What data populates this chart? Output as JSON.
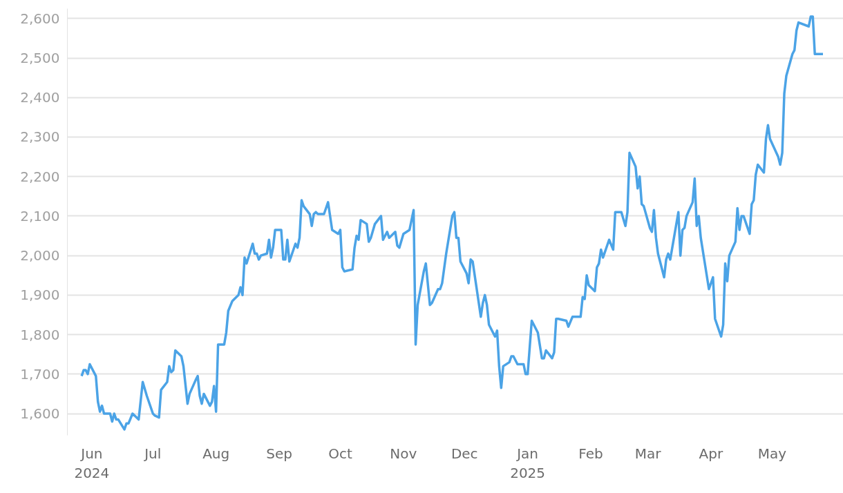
{
  "chart_data": {
    "type": "line",
    "x": [
      "2024-05-27",
      "2024-05-28",
      "2024-05-29",
      "2024-05-30",
      "2024-05-31",
      "2024-06-03",
      "2024-06-04",
      "2024-06-05",
      "2024-06-06",
      "2024-06-07",
      "2024-06-10",
      "2024-06-11",
      "2024-06-12",
      "2024-06-13",
      "2024-06-14",
      "2024-06-17",
      "2024-06-18",
      "2024-06-19",
      "2024-06-21",
      "2024-06-24",
      "2024-06-26",
      "2024-06-28",
      "2024-07-01",
      "2024-07-02",
      "2024-07-04",
      "2024-07-05",
      "2024-07-08",
      "2024-07-09",
      "2024-07-10",
      "2024-07-11",
      "2024-07-12",
      "2024-07-15",
      "2024-07-16",
      "2024-07-18",
      "2024-07-19",
      "2024-07-22",
      "2024-07-23",
      "2024-07-24",
      "2024-07-25",
      "2024-07-26",
      "2024-07-29",
      "2024-07-30",
      "2024-07-31",
      "2024-08-01",
      "2024-08-02",
      "2024-08-05",
      "2024-08-06",
      "2024-08-07",
      "2024-08-09",
      "2024-08-12",
      "2024-08-13",
      "2024-08-14",
      "2024-08-15",
      "2024-08-16",
      "2024-08-19",
      "2024-08-20",
      "2024-08-21",
      "2024-08-22",
      "2024-08-23",
      "2024-08-26",
      "2024-08-27",
      "2024-08-28",
      "2024-08-29",
      "2024-08-30",
      "2024-09-02",
      "2024-09-03",
      "2024-09-04",
      "2024-09-05",
      "2024-09-06",
      "2024-09-09",
      "2024-09-10",
      "2024-09-11",
      "2024-09-12",
      "2024-09-13",
      "2024-09-16",
      "2024-09-17",
      "2024-09-18",
      "2024-09-19",
      "2024-09-20",
      "2024-09-23",
      "2024-09-25",
      "2024-09-27",
      "2024-09-30",
      "2024-10-01",
      "2024-10-02",
      "2024-10-03",
      "2024-10-07",
      "2024-10-08",
      "2024-10-09",
      "2024-10-10",
      "2024-10-11",
      "2024-10-14",
      "2024-10-15",
      "2024-10-16",
      "2024-10-18",
      "2024-10-21",
      "2024-10-22",
      "2024-10-24",
      "2024-10-25",
      "2024-10-28",
      "2024-10-29",
      "2024-10-30",
      "2024-11-01",
      "2024-11-04",
      "2024-11-06",
      "2024-11-07",
      "2024-11-08",
      "2024-11-11",
      "2024-11-12",
      "2024-11-14",
      "2024-11-15",
      "2024-11-18",
      "2024-11-19",
      "2024-11-20",
      "2024-11-22",
      "2024-11-25",
      "2024-11-26",
      "2024-11-27",
      "2024-11-28",
      "2024-11-29",
      "2024-12-02",
      "2024-12-03",
      "2024-12-04",
      "2024-12-05",
      "2024-12-09",
      "2024-12-10",
      "2024-12-11",
      "2024-12-12",
      "2024-12-13",
      "2024-12-16",
      "2024-12-17",
      "2024-12-18",
      "2024-12-19",
      "2024-12-20",
      "2024-12-23",
      "2024-12-24",
      "2024-12-25",
      "2024-12-27",
      "2024-12-30",
      "2024-12-31",
      "2025-01-01",
      "2025-01-03",
      "2025-01-06",
      "2025-01-08",
      "2025-01-09",
      "2025-01-10",
      "2025-01-13",
      "2025-01-14",
      "2025-01-15",
      "2025-01-16",
      "2025-01-20",
      "2025-01-21",
      "2025-01-23",
      "2025-01-27",
      "2025-01-28",
      "2025-01-29",
      "2025-01-30",
      "2025-01-31",
      "2025-02-03",
      "2025-02-04",
      "2025-02-05",
      "2025-02-06",
      "2025-02-07",
      "2025-02-10",
      "2025-02-12",
      "2025-02-13",
      "2025-02-16",
      "2025-02-18",
      "2025-02-19",
      "2025-02-20",
      "2025-02-23",
      "2025-02-24",
      "2025-02-25",
      "2025-02-26",
      "2025-02-27",
      "2025-03-02",
      "2025-03-03",
      "2025-03-04",
      "2025-03-05",
      "2025-03-06",
      "2025-03-09",
      "2025-03-10",
      "2025-03-11",
      "2025-03-12",
      "2025-03-16",
      "2025-03-17",
      "2025-03-18",
      "2025-03-19",
      "2025-03-20",
      "2025-03-23",
      "2025-03-24",
      "2025-03-25",
      "2025-03-26",
      "2025-03-27",
      "2025-03-31",
      "2025-04-02",
      "2025-04-03",
      "2025-04-06",
      "2025-04-07",
      "2025-04-08",
      "2025-04-09",
      "2025-04-10",
      "2025-04-13",
      "2025-04-14",
      "2025-04-15",
      "2025-04-16",
      "2025-04-17",
      "2025-04-20",
      "2025-04-21",
      "2025-04-22",
      "2025-04-23",
      "2025-04-24",
      "2025-04-27",
      "2025-04-28",
      "2025-04-29",
      "2025-04-30",
      "2025-05-04",
      "2025-05-05",
      "2025-05-06",
      "2025-05-07",
      "2025-05-08",
      "2025-05-11",
      "2025-05-12",
      "2025-05-13",
      "2025-05-14",
      "2025-05-19",
      "2025-05-20",
      "2025-05-21",
      "2025-05-22",
      "2025-05-26"
    ],
    "series": [
      {
        "color": "#4ba3e6",
        "values": [
          1695,
          1710,
          1710,
          1700,
          1725,
          1695,
          1630,
          1605,
          1620,
          1600,
          1600,
          1580,
          1600,
          1585,
          1585,
          1560,
          1575,
          1575,
          1600,
          1585,
          1680,
          1645,
          1600,
          1595,
          1590,
          1660,
          1680,
          1720,
          1705,
          1710,
          1760,
          1745,
          1720,
          1625,
          1650,
          1685,
          1695,
          1645,
          1625,
          1650,
          1620,
          1630,
          1670,
          1605,
          1775,
          1775,
          1805,
          1860,
          1885,
          1900,
          1920,
          1900,
          1995,
          1980,
          2030,
          2005,
          2005,
          1990,
          2000,
          2005,
          2040,
          1995,
          2020,
          2065,
          2065,
          1990,
          1990,
          2040,
          1985,
          2030,
          2020,
          2045,
          2140,
          2125,
          2105,
          2075,
          2105,
          2110,
          2105,
          2105,
          2135,
          2065,
          2055,
          2065,
          1970,
          1960,
          1965,
          2020,
          2050,
          2040,
          2090,
          2080,
          2035,
          2045,
          2080,
          2100,
          2040,
          2060,
          2045,
          2060,
          2025,
          2020,
          2055,
          2065,
          2115,
          1775,
          1875,
          1960,
          1980,
          1875,
          1880,
          1915,
          1915,
          1930,
          2005,
          2100,
          2110,
          2045,
          2045,
          1985,
          1955,
          1930,
          1990,
          1985,
          1845,
          1880,
          1900,
          1875,
          1825,
          1795,
          1810,
          1720,
          1665,
          1720,
          1730,
          1745,
          1745,
          1725,
          1725,
          1700,
          1700,
          1835,
          1805,
          1740,
          1740,
          1760,
          1740,
          1755,
          1840,
          1840,
          1835,
          1820,
          1845,
          1845,
          1895,
          1890,
          1950,
          1925,
          1910,
          1970,
          1980,
          2015,
          1995,
          2040,
          2015,
          2110,
          2110,
          2075,
          2110,
          2260,
          2225,
          2170,
          2200,
          2130,
          2125,
          2070,
          2060,
          2115,
          2045,
          2005,
          1945,
          1990,
          2005,
          1990,
          2110,
          2000,
          2065,
          2070,
          2100,
          2135,
          2195,
          2075,
          2100,
          2045,
          1915,
          1945,
          1840,
          1795,
          1825,
          1980,
          1935,
          2000,
          2035,
          2120,
          2065,
          2100,
          2100,
          2055,
          2130,
          2140,
          2205,
          2230,
          2210,
          2295,
          2330,
          2295,
          2250,
          2230,
          2260,
          2410,
          2455,
          2510,
          2520,
          2570,
          2590,
          2580,
          2605,
          2605,
          2510,
          2510
        ]
      }
    ],
    "xlim": [
      "2024-05-20",
      "2025-06-05"
    ],
    "xticks": [
      {
        "value": "2024-06-01",
        "label": "Jun\n2024"
      },
      {
        "value": "2024-07-01",
        "label": "Jul"
      },
      {
        "value": "2024-08-01",
        "label": "Aug"
      },
      {
        "value": "2024-09-01",
        "label": "Sep"
      },
      {
        "value": "2024-10-01",
        "label": "Oct"
      },
      {
        "value": "2024-11-01",
        "label": "Nov"
      },
      {
        "value": "2024-12-01",
        "label": "Dec"
      },
      {
        "value": "2025-01-01",
        "label": "Jan\n2025"
      },
      {
        "value": "2025-02-01",
        "label": "Feb"
      },
      {
        "value": "2025-03-01",
        "label": "Mar"
      },
      {
        "value": "2025-04-01",
        "label": "Apr"
      },
      {
        "value": "2025-05-01",
        "label": "May"
      }
    ],
    "ylim": [
      1545,
      2625
    ],
    "yticks": [
      {
        "value": 1600,
        "label": "1,600"
      },
      {
        "value": 1700,
        "label": "1,700"
      },
      {
        "value": 1800,
        "label": "1,800"
      },
      {
        "value": 1900,
        "label": "1,900"
      },
      {
        "value": 2000,
        "label": "2,000"
      },
      {
        "value": 2100,
        "label": "2,100"
      },
      {
        "value": 2200,
        "label": "2,200"
      },
      {
        "value": 2300,
        "label": "2,300"
      },
      {
        "value": 2400,
        "label": "2,400"
      },
      {
        "value": 2500,
        "label": "2,500"
      },
      {
        "value": 2600,
        "label": "2,600"
      }
    ],
    "grid": "y",
    "line_style": "solid"
  }
}
